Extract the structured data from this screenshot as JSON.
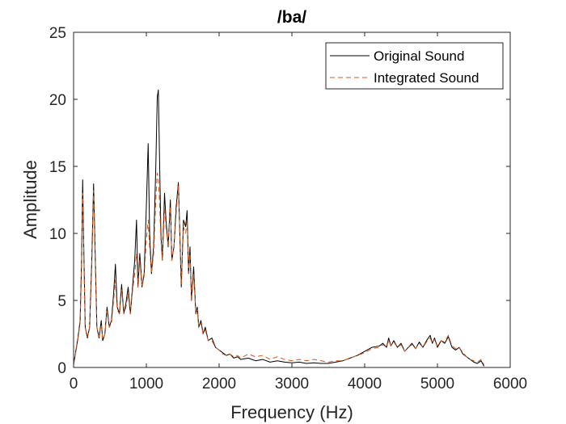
{
  "chart_data": {
    "type": "line",
    "title": "/ba/",
    "xlabel": "Frequency (Hz)",
    "ylabel": "Amplitude",
    "xlim": [
      0,
      6000
    ],
    "ylim": [
      0,
      25
    ],
    "xticks": [
      0,
      1000,
      2000,
      3000,
      4000,
      5000,
      6000
    ],
    "yticks": [
      0,
      5,
      10,
      15,
      20,
      25
    ],
    "grid": false,
    "legend_position": "top-right",
    "series": [
      {
        "name": "Original Sound",
        "color": "#000000",
        "dash": "solid",
        "points": [
          [
            0,
            0.2
          ],
          [
            30,
            1.2
          ],
          [
            60,
            2.2
          ],
          [
            90,
            3.5
          ],
          [
            110,
            8
          ],
          [
            125,
            14
          ],
          [
            140,
            9
          ],
          [
            160,
            3
          ],
          [
            190,
            2.2
          ],
          [
            220,
            3
          ],
          [
            250,
            8
          ],
          [
            275,
            13.7
          ],
          [
            295,
            9
          ],
          [
            320,
            3
          ],
          [
            350,
            2.2
          ],
          [
            380,
            3.5
          ],
          [
            400,
            2
          ],
          [
            430,
            2.5
          ],
          [
            460,
            4.5
          ],
          [
            490,
            3
          ],
          [
            520,
            3.5
          ],
          [
            550,
            5.5
          ],
          [
            575,
            7.7
          ],
          [
            600,
            4.5
          ],
          [
            630,
            4
          ],
          [
            660,
            6.2
          ],
          [
            690,
            4
          ],
          [
            720,
            4.8
          ],
          [
            750,
            6
          ],
          [
            780,
            4
          ],
          [
            810,
            6
          ],
          [
            840,
            8
          ],
          [
            865,
            11
          ],
          [
            885,
            6
          ],
          [
            910,
            8.5
          ],
          [
            940,
            6
          ],
          [
            970,
            7
          ],
          [
            1000,
            12
          ],
          [
            1025,
            16.7
          ],
          [
            1045,
            10
          ],
          [
            1070,
            7
          ],
          [
            1100,
            9
          ],
          [
            1130,
            15
          ],
          [
            1150,
            20.2
          ],
          [
            1165,
            20.7
          ],
          [
            1180,
            16
          ],
          [
            1200,
            10
          ],
          [
            1220,
            8
          ],
          [
            1250,
            13
          ],
          [
            1270,
            11
          ],
          [
            1300,
            9
          ],
          [
            1330,
            12.5
          ],
          [
            1350,
            8
          ],
          [
            1380,
            9
          ],
          [
            1410,
            12
          ],
          [
            1440,
            13.8
          ],
          [
            1460,
            10
          ],
          [
            1480,
            6
          ],
          [
            1510,
            11
          ],
          [
            1540,
            10.5
          ],
          [
            1560,
            11.7
          ],
          [
            1580,
            7
          ],
          [
            1600,
            9
          ],
          [
            1620,
            5
          ],
          [
            1650,
            7.5
          ],
          [
            1680,
            4
          ],
          [
            1700,
            4.5
          ],
          [
            1720,
            3
          ],
          [
            1750,
            3.5
          ],
          [
            1780,
            2.5
          ],
          [
            1810,
            3
          ],
          [
            1850,
            2
          ],
          [
            1900,
            2.2
          ],
          [
            1950,
            1.5
          ],
          [
            2000,
            1.3
          ],
          [
            2050,
            1.1
          ],
          [
            2100,
            0.9
          ],
          [
            2150,
            1
          ],
          [
            2200,
            0.7
          ],
          [
            2250,
            0.8
          ],
          [
            2300,
            0.6
          ],
          [
            2400,
            0.7
          ],
          [
            2500,
            0.5
          ],
          [
            2600,
            0.6
          ],
          [
            2700,
            0.4
          ],
          [
            2800,
            0.5
          ],
          [
            2900,
            0.4
          ],
          [
            3000,
            0.35
          ],
          [
            3100,
            0.4
          ],
          [
            3200,
            0.3
          ],
          [
            3300,
            0.35
          ],
          [
            3400,
            0.3
          ],
          [
            3500,
            0.3
          ],
          [
            3600,
            0.4
          ],
          [
            3700,
            0.5
          ],
          [
            3800,
            0.7
          ],
          [
            3900,
            0.9
          ],
          [
            4000,
            1.2
          ],
          [
            4100,
            1.5
          ],
          [
            4200,
            1.6
          ],
          [
            4250,
            1.8
          ],
          [
            4300,
            1.5
          ],
          [
            4330,
            2.2
          ],
          [
            4360,
            1.6
          ],
          [
            4400,
            2
          ],
          [
            4450,
            1.5
          ],
          [
            4500,
            1.8
          ],
          [
            4550,
            1.2
          ],
          [
            4600,
            1.5
          ],
          [
            4650,
            1.8
          ],
          [
            4700,
            1.4
          ],
          [
            4750,
            1.9
          ],
          [
            4800,
            1.5
          ],
          [
            4850,
            2
          ],
          [
            4900,
            2.4
          ],
          [
            4930,
            1.8
          ],
          [
            4960,
            2.2
          ],
          [
            5000,
            1.5
          ],
          [
            5050,
            2
          ],
          [
            5100,
            1.8
          ],
          [
            5150,
            2.3
          ],
          [
            5200,
            1.5
          ],
          [
            5250,
            1.3
          ],
          [
            5300,
            1.5
          ],
          [
            5350,
            1
          ],
          [
            5400,
            0.8
          ],
          [
            5450,
            0.6
          ],
          [
            5500,
            0.4
          ],
          [
            5550,
            0.3
          ],
          [
            5600,
            0.5
          ],
          [
            5640,
            0.1
          ]
        ]
      },
      {
        "name": "Integrated Sound",
        "color": "#d95319",
        "dash": "dashed",
        "points": [
          [
            0,
            0.2
          ],
          [
            30,
            1.1
          ],
          [
            60,
            2.1
          ],
          [
            90,
            3.3
          ],
          [
            110,
            7.5
          ],
          [
            125,
            13
          ],
          [
            140,
            8.5
          ],
          [
            160,
            3
          ],
          [
            190,
            2.3
          ],
          [
            220,
            3
          ],
          [
            250,
            7.5
          ],
          [
            275,
            13.2
          ],
          [
            295,
            8.5
          ],
          [
            320,
            3
          ],
          [
            350,
            2.3
          ],
          [
            380,
            3.2
          ],
          [
            400,
            2.1
          ],
          [
            430,
            2.5
          ],
          [
            460,
            4.2
          ],
          [
            490,
            3
          ],
          [
            520,
            3.3
          ],
          [
            550,
            5
          ],
          [
            575,
            6.5
          ],
          [
            600,
            4.3
          ],
          [
            630,
            4
          ],
          [
            660,
            5.8
          ],
          [
            690,
            4
          ],
          [
            720,
            4.5
          ],
          [
            750,
            5.5
          ],
          [
            780,
            4
          ],
          [
            810,
            5.7
          ],
          [
            840,
            7
          ],
          [
            865,
            8.5
          ],
          [
            885,
            6
          ],
          [
            910,
            8
          ],
          [
            940,
            6
          ],
          [
            970,
            6.8
          ],
          [
            1000,
            9.5
          ],
          [
            1025,
            11
          ],
          [
            1045,
            9
          ],
          [
            1070,
            7
          ],
          [
            1100,
            8.5
          ],
          [
            1130,
            12.5
          ],
          [
            1150,
            14.5
          ],
          [
            1165,
            14
          ],
          [
            1180,
            12.5
          ],
          [
            1200,
            9.5
          ],
          [
            1220,
            8
          ],
          [
            1250,
            12
          ],
          [
            1270,
            10.5
          ],
          [
            1300,
            9
          ],
          [
            1330,
            12
          ],
          [
            1350,
            8
          ],
          [
            1380,
            9
          ],
          [
            1410,
            11.5
          ],
          [
            1440,
            13.6
          ],
          [
            1460,
            10
          ],
          [
            1480,
            6.2
          ],
          [
            1510,
            10.5
          ],
          [
            1540,
            10
          ],
          [
            1560,
            11
          ],
          [
            1580,
            7
          ],
          [
            1600,
            8.5
          ],
          [
            1620,
            5
          ],
          [
            1650,
            7
          ],
          [
            1680,
            4
          ],
          [
            1700,
            4.3
          ],
          [
            1720,
            3
          ],
          [
            1750,
            3.3
          ],
          [
            1780,
            2.5
          ],
          [
            1810,
            2.8
          ],
          [
            1850,
            2
          ],
          [
            1900,
            2
          ],
          [
            1950,
            1.5
          ],
          [
            2000,
            1.3
          ],
          [
            2050,
            1
          ],
          [
            2100,
            0.9
          ],
          [
            2150,
            1
          ],
          [
            2200,
            0.8
          ],
          [
            2250,
            0.9
          ],
          [
            2300,
            0.7
          ],
          [
            2400,
            1
          ],
          [
            2500,
            0.8
          ],
          [
            2600,
            0.9
          ],
          [
            2700,
            0.6
          ],
          [
            2800,
            0.8
          ],
          [
            2900,
            0.6
          ],
          [
            3000,
            0.5
          ],
          [
            3100,
            0.6
          ],
          [
            3200,
            0.5
          ],
          [
            3300,
            0.6
          ],
          [
            3400,
            0.5
          ],
          [
            3500,
            0.4
          ],
          [
            3600,
            0.5
          ],
          [
            3700,
            0.5
          ],
          [
            3800,
            0.7
          ],
          [
            3900,
            0.9
          ],
          [
            4000,
            1.1
          ],
          [
            4100,
            1.4
          ],
          [
            4200,
            1.5
          ],
          [
            4250,
            1.7
          ],
          [
            4300,
            1.5
          ],
          [
            4330,
            2
          ],
          [
            4360,
            1.6
          ],
          [
            4400,
            1.9
          ],
          [
            4450,
            1.5
          ],
          [
            4500,
            1.7
          ],
          [
            4550,
            1.2
          ],
          [
            4600,
            1.5
          ],
          [
            4650,
            1.7
          ],
          [
            4700,
            1.4
          ],
          [
            4750,
            1.8
          ],
          [
            4800,
            1.5
          ],
          [
            4850,
            1.9
          ],
          [
            4900,
            2.2
          ],
          [
            4930,
            1.8
          ],
          [
            4960,
            2.1
          ],
          [
            5000,
            1.6
          ],
          [
            5050,
            2
          ],
          [
            5100,
            1.9
          ],
          [
            5150,
            2.4
          ],
          [
            5200,
            1.6
          ],
          [
            5250,
            1.4
          ],
          [
            5300,
            1.5
          ],
          [
            5350,
            1.1
          ],
          [
            5400,
            0.8
          ],
          [
            5450,
            0.6
          ],
          [
            5500,
            0.5
          ],
          [
            5550,
            0.4
          ],
          [
            5600,
            0.6
          ],
          [
            5640,
            0.2
          ]
        ]
      }
    ]
  }
}
